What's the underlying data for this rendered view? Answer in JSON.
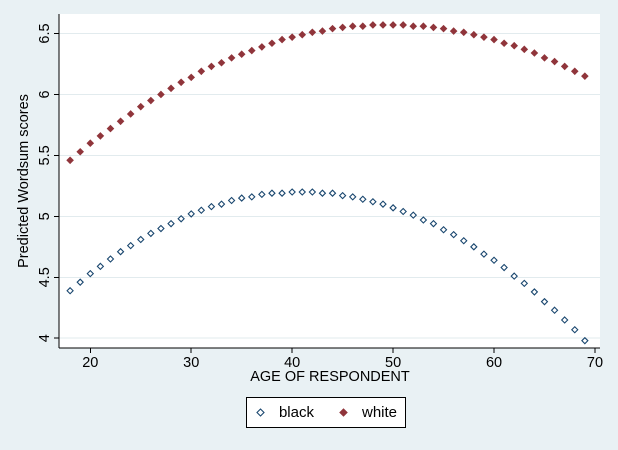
{
  "figure": {
    "background_color": "#e9f1f4",
    "plot_background_color": "#ffffff",
    "grid_color": "#e2ebee",
    "axis_color": "#000000"
  },
  "chart_data": {
    "type": "scatter",
    "title": "",
    "xlabel": "AGE OF RESPONDENT",
    "ylabel": "Predicted Wordsum scores",
    "xlim": [
      16.9,
      70.5
    ],
    "ylim": [
      3.92,
      6.66
    ],
    "grid": true,
    "x_ticks": [
      20,
      30,
      40,
      50,
      60,
      70
    ],
    "x_tick_labels": [
      "20",
      "30",
      "40",
      "50",
      "60",
      "70"
    ],
    "y_ticks": [
      4,
      4.5,
      5,
      5.5,
      6,
      6.5
    ],
    "y_tick_labels": [
      "4",
      "4.5",
      "5",
      "5.5",
      "6",
      "6.5"
    ],
    "legend_position": "bottom-center",
    "x": [
      18,
      19,
      20,
      21,
      22,
      23,
      24,
      25,
      26,
      27,
      28,
      29,
      30,
      31,
      32,
      33,
      34,
      35,
      36,
      37,
      38,
      39,
      40,
      41,
      42,
      43,
      44,
      45,
      46,
      47,
      48,
      49,
      50,
      51,
      52,
      53,
      54,
      55,
      56,
      57,
      58,
      59,
      60,
      61,
      62,
      63,
      64,
      65,
      66,
      67,
      68,
      69
    ],
    "series": [
      {
        "name": "black",
        "marker": "diamond-hollow",
        "color": "#1a476f",
        "values": [
          4.39,
          4.46,
          4.53,
          4.59,
          4.65,
          4.71,
          4.76,
          4.81,
          4.86,
          4.9,
          4.94,
          4.98,
          5.02,
          5.05,
          5.08,
          5.1,
          5.13,
          5.15,
          5.16,
          5.18,
          5.19,
          5.19,
          5.2,
          5.2,
          5.2,
          5.19,
          5.19,
          5.17,
          5.16,
          5.14,
          5.12,
          5.1,
          5.07,
          5.04,
          5.01,
          4.97,
          4.94,
          4.89,
          4.85,
          4.8,
          4.75,
          4.69,
          4.64,
          4.58,
          4.51,
          4.45,
          4.38,
          4.3,
          4.23,
          4.15,
          4.07,
          3.98
        ]
      },
      {
        "name": "white",
        "marker": "diamond-filled",
        "color": "#90353b",
        "values": [
          5.46,
          5.53,
          5.6,
          5.66,
          5.72,
          5.78,
          5.84,
          5.9,
          5.95,
          6.0,
          6.05,
          6.1,
          6.14,
          6.19,
          6.23,
          6.26,
          6.3,
          6.33,
          6.36,
          6.39,
          6.42,
          6.45,
          6.47,
          6.49,
          6.51,
          6.52,
          6.54,
          6.55,
          6.56,
          6.56,
          6.57,
          6.57,
          6.57,
          6.57,
          6.56,
          6.56,
          6.55,
          6.54,
          6.52,
          6.51,
          6.49,
          6.47,
          6.45,
          6.42,
          6.4,
          6.37,
          6.34,
          6.3,
          6.27,
          6.23,
          6.19,
          6.15
        ]
      }
    ]
  }
}
